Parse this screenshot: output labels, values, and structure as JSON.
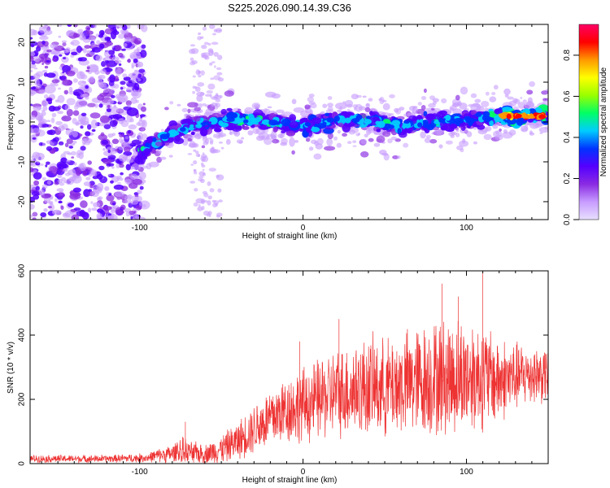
{
  "chart_data": [
    {
      "type": "heatmap",
      "title": "S225.2026.090.14.39.C36",
      "xlabel": "Height of straight line (km)",
      "ylabel": "Frequency (Hz)",
      "xlim": [
        -167,
        150
      ],
      "ylim": [
        -24.5,
        24.5
      ],
      "xticks": [
        -100,
        0,
        100
      ],
      "yticks": [
        -20,
        -10,
        0,
        10,
        20
      ],
      "colorbar": {
        "label": "Normalized spectral amplitude",
        "range": [
          0,
          0.95
        ],
        "ticks": [
          0.0,
          0.2,
          0.4,
          0.6,
          0.8
        ],
        "colors": [
          "#e8e0ff",
          "#c79cff",
          "#8a2be2",
          "#5500ff",
          "#0033ff",
          "#00ccff",
          "#00ff66",
          "#99ff00",
          "#ffff00",
          "#ff9900",
          "#ff0000",
          "#ff0066"
        ]
      },
      "ridge": {
        "description": "frequency ridge vs height",
        "points": [
          [
            -100,
            -8
          ],
          [
            -90,
            -5
          ],
          [
            -80,
            -3
          ],
          [
            -70,
            -1
          ],
          [
            -60,
            -0.5
          ],
          [
            -40,
            1
          ],
          [
            -20,
            0
          ],
          [
            0,
            -1
          ],
          [
            20,
            0.5
          ],
          [
            40,
            0.5
          ],
          [
            60,
            -1
          ],
          [
            80,
            0
          ],
          [
            100,
            0.5
          ],
          [
            120,
            1.5
          ],
          [
            150,
            1.5
          ]
        ]
      }
    },
    {
      "type": "line",
      "xlabel": "Height of straight line (km)",
      "ylabel": "SNR (10 * v/v)",
      "xlim": [
        -167,
        150
      ],
      "ylim": [
        0,
        600
      ],
      "xticks": [
        -100,
        0,
        100
      ],
      "yticks": [
        0,
        200,
        400,
        600
      ],
      "color": "#ee3333",
      "envelope": {
        "x": [
          -167,
          -120,
          -95,
          -90,
          -80,
          -75,
          -70,
          -60,
          -50,
          -40,
          -30,
          -20,
          -10,
          0,
          10,
          20,
          30,
          40,
          50,
          60,
          70,
          80,
          90,
          100,
          110,
          120,
          130,
          140,
          150
        ],
        "mean": [
          15,
          15,
          18,
          25,
          30,
          40,
          35,
          30,
          45,
          70,
          110,
          140,
          170,
          180,
          200,
          220,
          230,
          240,
          235,
          245,
          255,
          265,
          270,
          275,
          270,
          260,
          270,
          280,
          275
        ],
        "amp": [
          12,
          12,
          15,
          20,
          30,
          45,
          40,
          30,
          45,
          60,
          80,
          100,
          110,
          120,
          130,
          140,
          150,
          160,
          155,
          165,
          175,
          185,
          190,
          185,
          170,
          140,
          110,
          95,
          90
        ]
      },
      "peaks": [
        [
          -72,
          130
        ],
        [
          -2,
          380
        ],
        [
          22,
          450
        ],
        [
          85,
          560
        ],
        [
          95,
          520
        ],
        [
          110,
          595
        ]
      ]
    }
  ]
}
